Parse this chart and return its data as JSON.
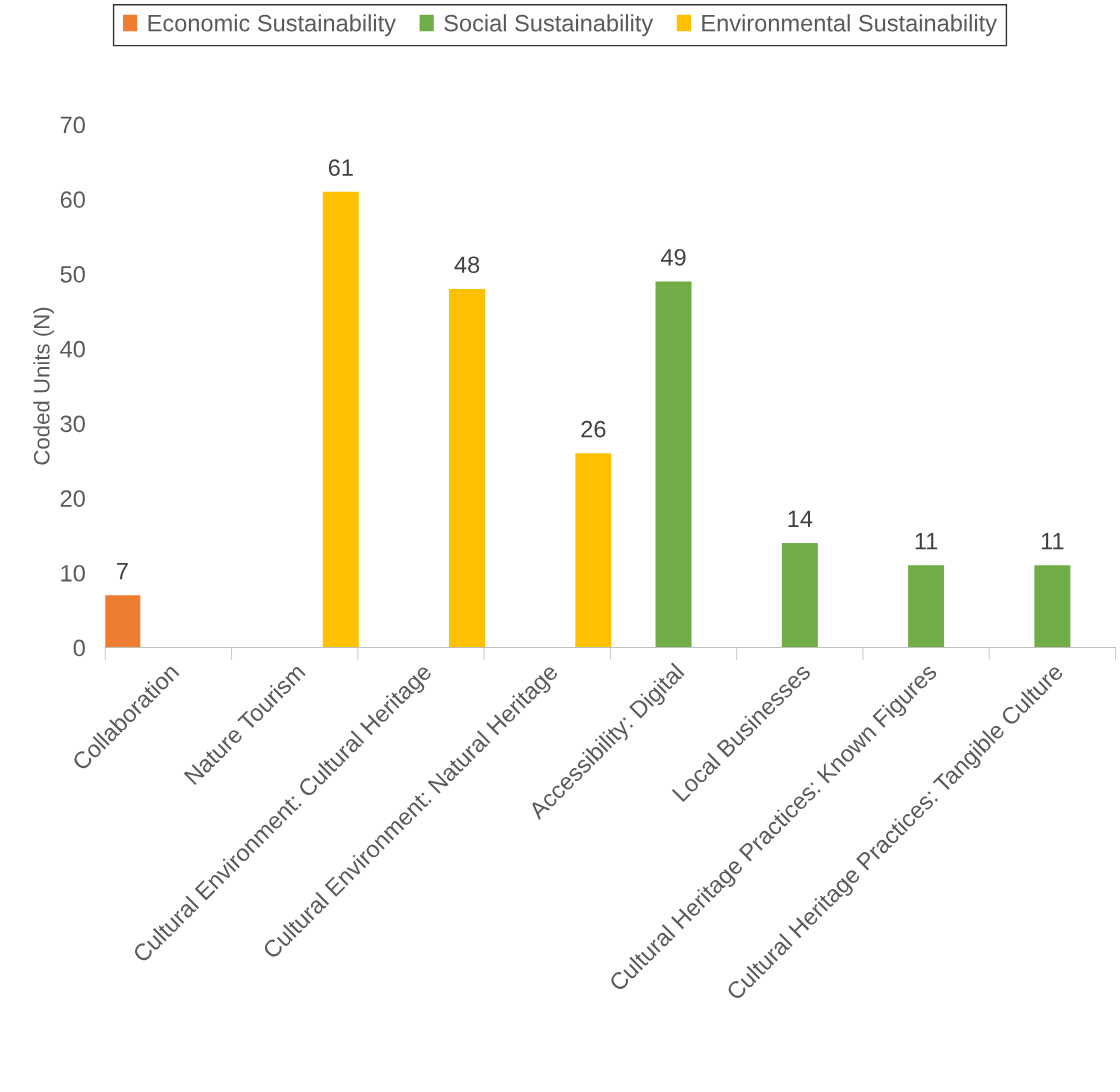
{
  "chart_data": {
    "type": "bar",
    "ylabel": "Coded Units (N)",
    "categories": [
      "Collaboration",
      "Nature Tourism",
      "Cultural Environment: Cultural Heritage",
      "Cultural Environment: Natural Heritage",
      "Accessibility: Digital",
      "Local Businesses",
      "Cultural Heritage Practices: Known Figures",
      "Cultural Heritage Practices: Tangible Culture"
    ],
    "series": [
      {
        "name": "Economic Sustainability",
        "color": "#ed7d31",
        "values": [
          7,
          null,
          null,
          null,
          null,
          null,
          null,
          null
        ]
      },
      {
        "name": "Social Sustainability",
        "color": "#70ad47",
        "values": [
          null,
          null,
          null,
          null,
          49,
          14,
          11,
          11
        ]
      },
      {
        "name": "Environmental Sustainability",
        "color": "#ffc000",
        "values": [
          null,
          61,
          48,
          26,
          null,
          null,
          null,
          null
        ]
      }
    ],
    "ylim": [
      0,
      70
    ],
    "yticks": [
      0,
      10,
      20,
      30,
      40,
      50,
      60,
      70
    ],
    "data_labels": true,
    "grid": false,
    "legend": "top"
  }
}
